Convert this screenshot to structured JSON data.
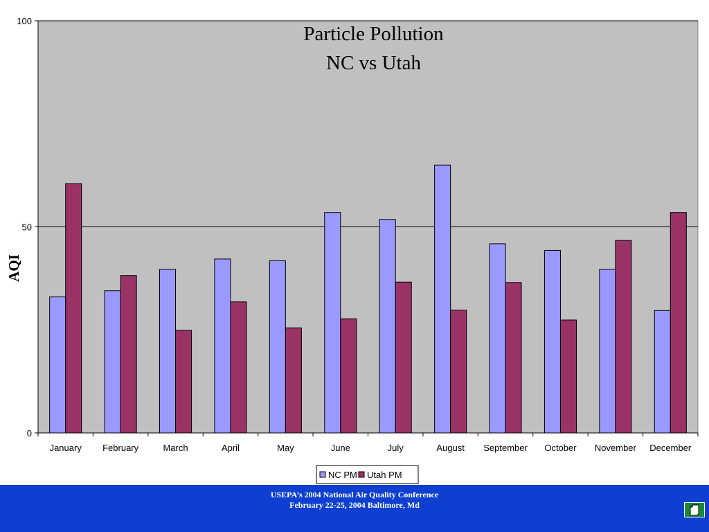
{
  "chart_data": {
    "type": "bar",
    "title_lines": [
      "Particle Pollution",
      "NC vs Utah"
    ],
    "xlabel": "",
    "ylabel": "AQI",
    "ylim": [
      0,
      100
    ],
    "yticks": [
      0,
      50,
      100
    ],
    "categories": [
      "January",
      "February",
      "March",
      "April",
      "May",
      "June",
      "July",
      "August",
      "September",
      "October",
      "November",
      "December"
    ],
    "series": [
      {
        "name": "NC PM",
        "color": "#9999ff",
        "values": [
          33,
          34.5,
          39.7,
          42.2,
          41.8,
          53.5,
          51.8,
          65,
          45.9,
          44.3,
          39.7,
          29.7
        ]
      },
      {
        "name": "Utah PM",
        "color": "#993366",
        "values": [
          60.5,
          38.2,
          24.9,
          31.8,
          25.5,
          27.7,
          36.6,
          29.8,
          36.5,
          27.4,
          46.7,
          53.5
        ]
      }
    ],
    "grid": "horizontal",
    "plot_background": "#c0c0c0",
    "legend_position": "bottom"
  },
  "footer": {
    "line1": "USEPA’s 2004 National Air Quality Conference",
    "line2": "February 22-25, 2004  Baltimore, Md",
    "background": "#0e3fd0"
  },
  "nav": {
    "icon": "document-icon",
    "color": "#1a8a3a"
  }
}
